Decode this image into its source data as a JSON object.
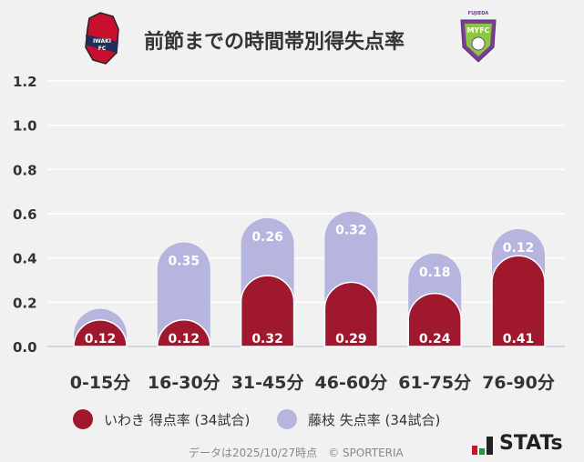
{
  "title": "前節までの時間帯別得失点率",
  "logos": {
    "home": "IWAKI FC",
    "away": "FUJIEDA MYFC"
  },
  "legend": [
    {
      "label": "いわき 得点率 (34試合)",
      "color": "#a0182e"
    },
    {
      "label": "藤枝 失点率 (34試合)",
      "color": "#b5b5df"
    }
  ],
  "footer": {
    "note": "データは2025/10/27時点　© SPORTERIA",
    "brand": "STATs"
  },
  "chart_data": {
    "type": "bar",
    "stacked": true,
    "title": "前節までの時間帯別得失点率",
    "categories": [
      "0-15分",
      "16-30分",
      "31-45分",
      "46-60分",
      "61-75分",
      "76-90分"
    ],
    "series": [
      {
        "name": "いわき 得点率 (34試合)",
        "values": [
          0.12,
          0.12,
          0.32,
          0.29,
          0.24,
          0.41
        ],
        "labels": [
          "0.12",
          "0.12",
          "0.32",
          "0.29",
          "0.24",
          "0.41"
        ],
        "color": "#a0182e"
      },
      {
        "name": "藤枝 失点率 (34試合)",
        "values": [
          0.05,
          0.35,
          0.26,
          0.32,
          0.18,
          0.12
        ],
        "labels": [
          "",
          "0.35",
          "0.26",
          "0.32",
          "0.18",
          "0.12"
        ],
        "color": "#b5b5df"
      }
    ],
    "yticks": [
      "0.0",
      "0.2",
      "0.4",
      "0.6",
      "0.8",
      "1.0",
      "1.2"
    ],
    "ylim": [
      0,
      1.2
    ],
    "grid": true,
    "legend_position": "bottom"
  }
}
